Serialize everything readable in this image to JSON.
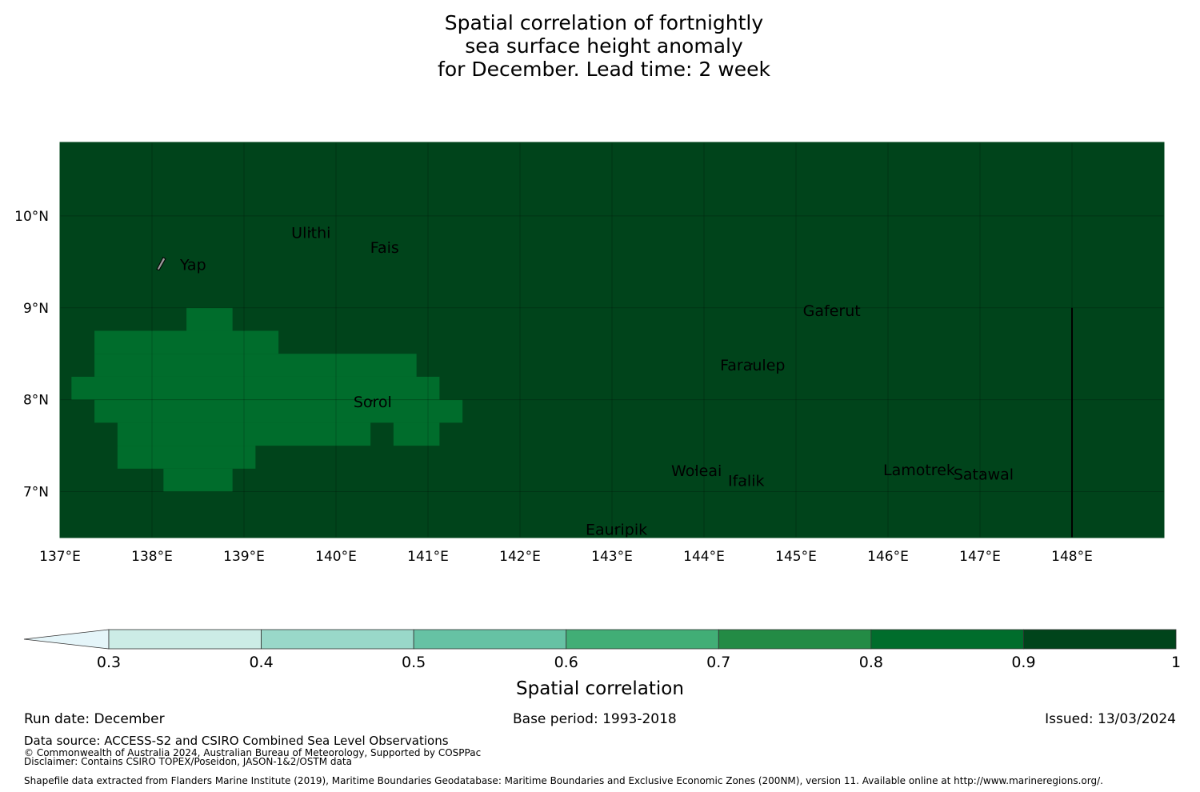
{
  "title": {
    "line1": "Spatial correlation of fortnightly",
    "line2": "sea surface height anomaly",
    "line3": "for December. Lead time: 2 week"
  },
  "map": {
    "lon_range": [
      137.0,
      149.0
    ],
    "lat_range": [
      6.5,
      10.8
    ],
    "x_ticks": [
      {
        "value": 137,
        "label": "137°E"
      },
      {
        "value": 138,
        "label": "138°E"
      },
      {
        "value": 139,
        "label": "139°E"
      },
      {
        "value": 140,
        "label": "140°E"
      },
      {
        "value": 141,
        "label": "141°E"
      },
      {
        "value": 142,
        "label": "142°E"
      },
      {
        "value": 143,
        "label": "143°E"
      },
      {
        "value": 144,
        "label": "144°E"
      },
      {
        "value": 145,
        "label": "145°E"
      },
      {
        "value": 146,
        "label": "146°E"
      },
      {
        "value": 147,
        "label": "147°E"
      },
      {
        "value": 148,
        "label": "148°E"
      }
    ],
    "y_ticks": [
      {
        "value": 10,
        "label": "10°N"
      },
      {
        "value": 9,
        "label": "9°N"
      },
      {
        "value": 8,
        "label": "8°N"
      },
      {
        "value": 7,
        "label": "7°N"
      }
    ],
    "background_value": 0.95,
    "background_color": "#00441b",
    "patch_value": 0.85,
    "patch_color": "#006d2c",
    "patch_cells": [
      {
        "lon": [
          138.375,
          138.875
        ],
        "lat": [
          8.75,
          9.0
        ]
      },
      {
        "lon": [
          137.375,
          139.375
        ],
        "lat": [
          8.5,
          8.75
        ]
      },
      {
        "lon": [
          137.375,
          140.875
        ],
        "lat": [
          8.25,
          8.5
        ]
      },
      {
        "lon": [
          137.125,
          141.125
        ],
        "lat": [
          8.0,
          8.25
        ]
      },
      {
        "lon": [
          137.375,
          141.375
        ],
        "lat": [
          7.75,
          8.0
        ]
      },
      {
        "lon": [
          137.625,
          140.375
        ],
        "lat": [
          7.5,
          7.75
        ]
      },
      {
        "lon": [
          140.625,
          141.125
        ],
        "lat": [
          7.5,
          7.75
        ]
      },
      {
        "lon": [
          137.625,
          139.125
        ],
        "lat": [
          7.25,
          7.5
        ]
      },
      {
        "lon": [
          138.125,
          138.875
        ],
        "lat": [
          7.0,
          7.25
        ]
      }
    ],
    "boundary_line": {
      "lon": 148.0,
      "lat": [
        6.5,
        9.0
      ]
    },
    "places": [
      {
        "name": "Ulithi",
        "lon": 139.72,
        "lat": 9.83
      },
      {
        "name": "Fais",
        "lon": 140.52,
        "lat": 9.67
      },
      {
        "name": "Yap",
        "lon": 138.13,
        "lat": 9.48
      },
      {
        "name": "Gaferut",
        "lon": 145.38,
        "lat": 8.98
      },
      {
        "name": "Faraulep",
        "lon": 144.52,
        "lat": 8.39
      },
      {
        "name": "Sorol",
        "lon": 140.39,
        "lat": 7.99
      },
      {
        "name": "Woleai",
        "lon": 143.91,
        "lat": 7.24
      },
      {
        "name": "Ifalik",
        "lon": 144.45,
        "lat": 7.13
      },
      {
        "name": "Lamotrek",
        "lon": 146.33,
        "lat": 7.25
      },
      {
        "name": "Satawal",
        "lon": 147.03,
        "lat": 7.2
      },
      {
        "name": "Eauripik",
        "lon": 143.04,
        "lat": 6.6
      }
    ]
  },
  "colorbar": {
    "label": "Spatial correlation",
    "ticks": [
      "0.3",
      "0.4",
      "0.5",
      "0.6",
      "0.7",
      "0.8",
      "0.9",
      "1"
    ],
    "colors": [
      "#ccece6",
      "#99d8c9",
      "#66c2a4",
      "#41ae76",
      "#238b45",
      "#006d2c",
      "#00441b"
    ],
    "extend_color": "#e5f5f9"
  },
  "footer": {
    "run_date": "Run date: December",
    "base_period": "Base period: 1993-2018",
    "issued": "Issued: 13/03/2024",
    "data_source": "Data source: ACCESS-S2 and CSIRO Combined Sea Level Observations",
    "copyright": "© Commonwealth of Australia 2024, Australian Bureau of Meteorology, Supported by COSPPac",
    "disclaimer": "Disclaimer: Contains CSIRO TOPEX/Poseidon, JASON-1&2/OSTM data",
    "shapefile": "Shapefile data extracted from Flanders Marine Institute (2019), Maritime Boundaries Geodatabase: Maritime Boundaries and Exclusive Economic Zones (200NM), version 11. Available online at http://www.marineregions.org/."
  }
}
